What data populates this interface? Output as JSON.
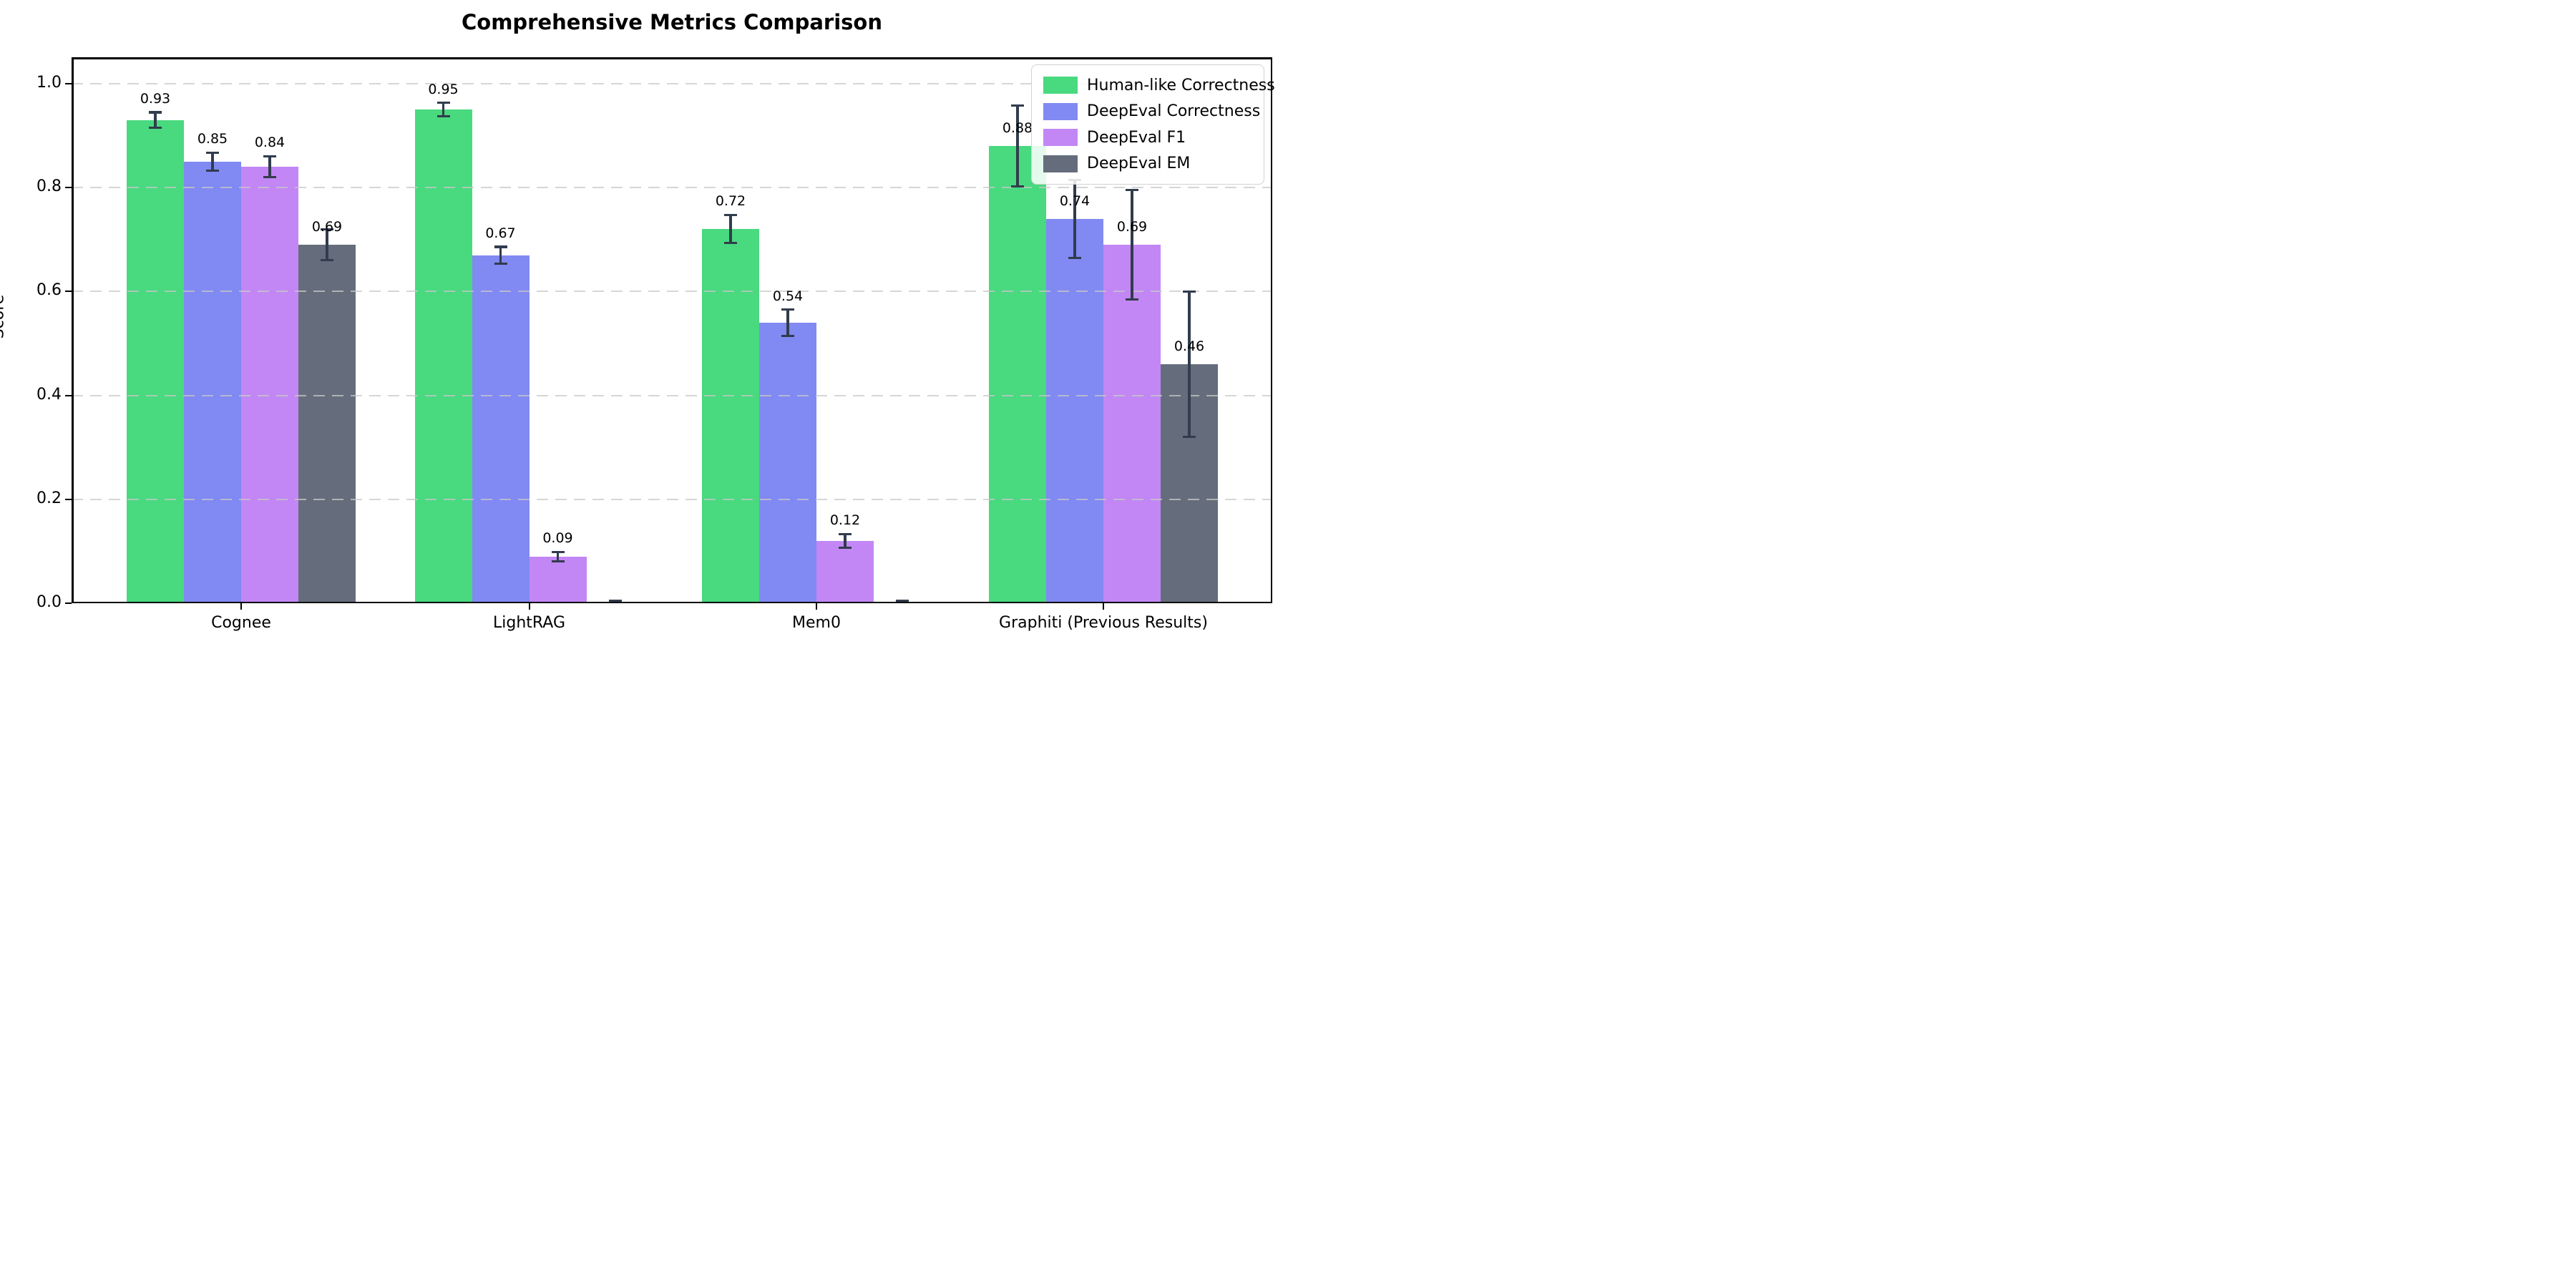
{
  "chart_data": {
    "type": "bar",
    "title": "Comprehensive Metrics Comparison",
    "xlabel": "",
    "ylabel": "Score",
    "categories": [
      "Cognee",
      "LightRAG",
      "Mem0",
      "Graphiti (Previous Results)"
    ],
    "series": [
      {
        "name": "Human-like Correctness",
        "color": "#49d97f",
        "values": [
          0.93,
          0.95,
          0.72,
          0.88
        ],
        "errors": [
          0.015,
          0.013,
          0.027,
          0.078
        ],
        "labels": [
          "0.93",
          "0.95",
          "0.72",
          "0.88"
        ]
      },
      {
        "name": "DeepEval Correctness",
        "color": "#8189f2",
        "values": [
          0.85,
          0.67,
          0.54,
          0.74
        ],
        "errors": [
          0.017,
          0.016,
          0.025,
          0.075
        ],
        "labels": [
          "0.85",
          "0.67",
          "0.54",
          "0.74"
        ]
      },
      {
        "name": "DeepEval F1",
        "color": "#c287f4",
        "values": [
          0.84,
          0.09,
          0.12,
          0.69
        ],
        "errors": [
          0.02,
          0.009,
          0.013,
          0.105
        ],
        "labels": [
          "0.84",
          "0.09",
          "0.12",
          "0.69"
        ]
      },
      {
        "name": "DeepEval EM",
        "color": "#656d7c",
        "values": [
          0.69,
          0.0,
          0.0,
          0.46
        ],
        "errors": [
          0.03,
          0.004,
          0.004,
          0.14
        ],
        "labels": [
          "0.69",
          null,
          null,
          "0.46"
        ]
      }
    ],
    "yticks": [
      0.0,
      0.2,
      0.4,
      0.6,
      0.8,
      1.0
    ],
    "ytick_labels": [
      "0.0",
      "0.2",
      "0.4",
      "0.6",
      "0.8",
      "1.0"
    ],
    "ylim": [
      0,
      1.05
    ],
    "grid": "horizontal-dashed",
    "grid_color": "#cccccc",
    "legend_position": "upper right",
    "errorbar_color": "#313c4d",
    "axis_color": "#000000",
    "background_color": "#ffffff"
  }
}
